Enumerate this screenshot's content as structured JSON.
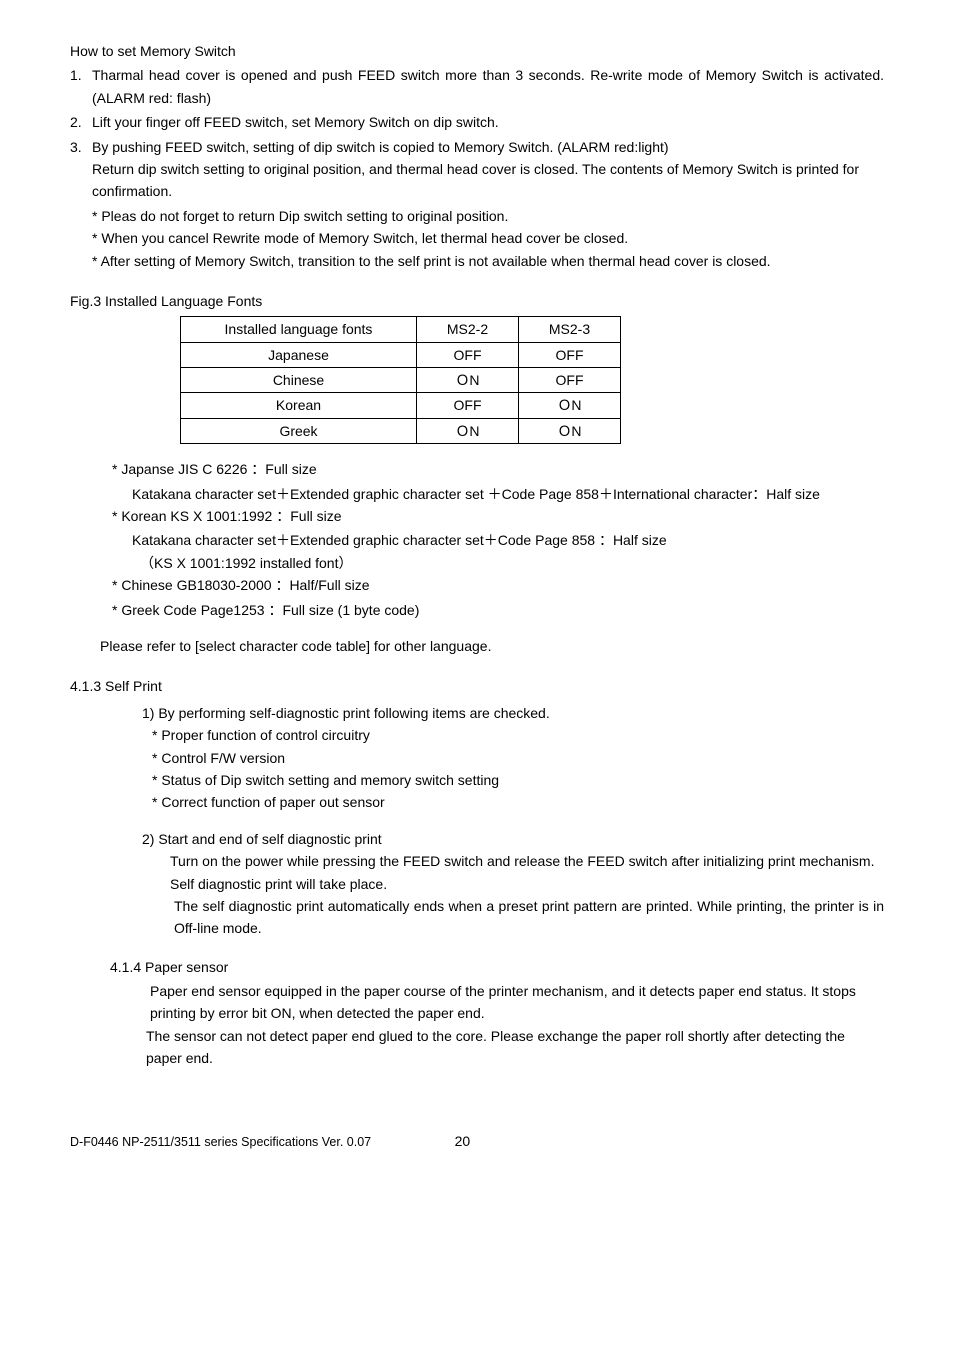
{
  "title": "How to set Memory Switch",
  "steps": {
    "s1": {
      "num": "1.",
      "text": "Tharmal head cover is opened and push FEED switch more than 3 seconds. Re-write mode of Memory Switch is activated. (ALARM red: flash)"
    },
    "s2": {
      "num": "2.",
      "text": "Lift your finger off FEED switch, set Memory Switch on dip switch."
    },
    "s3": {
      "num": "3.",
      "line1": "By pushing FEED switch, setting of dip switch is copied to Memory Switch. (ALARM red:light)",
      "line2": "Return dip switch setting to original position, and thermal head cover is closed. The contents of Memory Switch is printed for confirmation.",
      "star1": "* Pleas do not forget to return Dip switch setting to original position.",
      "star2": "* When you cancel Rewrite mode of Memory Switch, let thermal head cover be closed.",
      "star3": "* After setting of Memory Switch, transition to the self print is not available when thermal head cover is closed."
    }
  },
  "fig3": {
    "title": "Fig.3 Installed Language Fonts",
    "table": {
      "headers": [
        "Installed language fonts",
        "MS2-2",
        "MS2-3"
      ],
      "col_widths": [
        "236px",
        "102px",
        "102px"
      ],
      "rows": [
        [
          "Japanese",
          "OFF",
          "OFF"
        ],
        [
          "Chinese",
          "ＯN",
          "OFF"
        ],
        [
          "Korean",
          "OFF",
          "ＯN"
        ],
        [
          "Greek",
          "ＯN",
          "ＯN"
        ]
      ]
    }
  },
  "notes": {
    "n1_head": "* Japanse JIS C 6226   ：Full size",
    "n1_body": "Katakana character set＋Extended graphic character set ＋Code Page 858＋International character：Half size",
    "n2_head": "* Korean KS X 1001:1992  ：Full size",
    "n2_body": "Katakana character set＋Extended graphic character set＋Code Page 858   ：Half size",
    "n2_body2": "（KS X 1001:1992 installed font）",
    "n3": "* Chinese GB18030-2000  ：Half/Full size",
    "n4": "* Greek Code Page1253   ：Full size (1 byte code)"
  },
  "refer": "Please refer to [select character code table] for other language.",
  "s413": {
    "title": "4.1.3 Self Print",
    "p1": "1) By performing self-diagnostic print following items are checked.",
    "b1": "* Proper function of control circuitry",
    "b2": "* Control F/W version",
    "b3": "* Status of Dip switch setting and memory switch setting",
    "b4": "* Correct function of paper out sensor",
    "p2": "2) Start and end of self diagnostic print",
    "p2a": "Turn on the power while pressing the FEED switch and release the FEED switch after initializing print mechanism. Self diagnostic print will take place.",
    "p2b": "The self diagnostic print automatically ends when a preset print pattern are printed. While printing, the printer is in Off-line mode."
  },
  "s414": {
    "title": "4.1.4 Paper sensor",
    "l1": "Paper end sensor equipped in the paper course of the printer mechanism, and it detects paper  end status. It stops printing by error bit ON, when detected the paper end.",
    "l2": "The sensor can not detect paper end glued to the core. Please exchange the paper roll shortly after detecting the paper end."
  },
  "footer": {
    "left": "D-F0446 NP-2511/3511 series Specifications Ver. 0.07",
    "page": "20"
  }
}
